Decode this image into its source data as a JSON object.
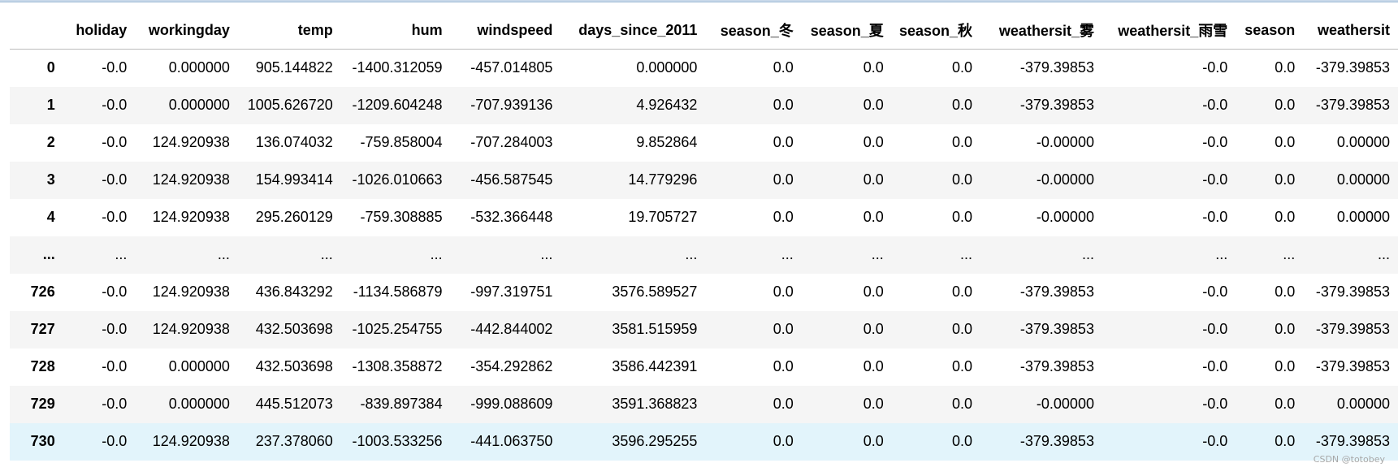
{
  "columns": [
    "",
    "holiday",
    "workingday",
    "temp",
    "hum",
    "windspeed",
    "days_since_2011",
    "season_冬",
    "season_夏",
    "season_秋",
    "weathersit_雾",
    "weathersit_雨雪",
    "season",
    "weathersit"
  ],
  "rows": [
    [
      "0",
      "-0.0",
      "0.000000",
      "905.144822",
      "-1400.312059",
      "-457.014805",
      "0.000000",
      "0.0",
      "0.0",
      "0.0",
      "-379.39853",
      "-0.0",
      "0.0",
      "-379.39853"
    ],
    [
      "1",
      "-0.0",
      "0.000000",
      "1005.626720",
      "-1209.604248",
      "-707.939136",
      "4.926432",
      "0.0",
      "0.0",
      "0.0",
      "-379.39853",
      "-0.0",
      "0.0",
      "-379.39853"
    ],
    [
      "2",
      "-0.0",
      "124.920938",
      "136.074032",
      "-759.858004",
      "-707.284003",
      "9.852864",
      "0.0",
      "0.0",
      "0.0",
      "-0.00000",
      "-0.0",
      "0.0",
      "0.00000"
    ],
    [
      "3",
      "-0.0",
      "124.920938",
      "154.993414",
      "-1026.010663",
      "-456.587545",
      "14.779296",
      "0.0",
      "0.0",
      "0.0",
      "-0.00000",
      "-0.0",
      "0.0",
      "0.00000"
    ],
    [
      "4",
      "-0.0",
      "124.920938",
      "295.260129",
      "-759.308885",
      "-532.366448",
      "19.705727",
      "0.0",
      "0.0",
      "0.0",
      "-0.00000",
      "-0.0",
      "0.0",
      "0.00000"
    ],
    [
      "...",
      "...",
      "...",
      "...",
      "...",
      "...",
      "...",
      "...",
      "...",
      "...",
      "...",
      "...",
      "...",
      "..."
    ],
    [
      "726",
      "-0.0",
      "124.920938",
      "436.843292",
      "-1134.586879",
      "-997.319751",
      "3576.589527",
      "0.0",
      "0.0",
      "0.0",
      "-379.39853",
      "-0.0",
      "0.0",
      "-379.39853"
    ],
    [
      "727",
      "-0.0",
      "124.920938",
      "432.503698",
      "-1025.254755",
      "-442.844002",
      "3581.515959",
      "0.0",
      "0.0",
      "0.0",
      "-379.39853",
      "-0.0",
      "0.0",
      "-379.39853"
    ],
    [
      "728",
      "-0.0",
      "0.000000",
      "432.503698",
      "-1308.358872",
      "-354.292862",
      "3586.442391",
      "0.0",
      "0.0",
      "0.0",
      "-379.39853",
      "-0.0",
      "0.0",
      "-379.39853"
    ],
    [
      "729",
      "-0.0",
      "0.000000",
      "445.512073",
      "-839.897384",
      "-999.088609",
      "3591.368823",
      "0.0",
      "0.0",
      "0.0",
      "-0.00000",
      "-0.0",
      "0.0",
      "0.00000"
    ],
    [
      "730",
      "-0.0",
      "124.920938",
      "237.378060",
      "-1003.533256",
      "-441.063750",
      "3596.295255",
      "0.0",
      "0.0",
      "0.0",
      "-379.39853",
      "-0.0",
      "0.0",
      "-379.39853"
    ]
  ],
  "selected_row_index": 10,
  "watermark": "CSDN @totobey",
  "colors": {
    "stripe": "#f5f5f5",
    "selected_row": "#e2f4fb",
    "header_border": "#bdbdbd",
    "top_rule": "#9fbad6"
  }
}
